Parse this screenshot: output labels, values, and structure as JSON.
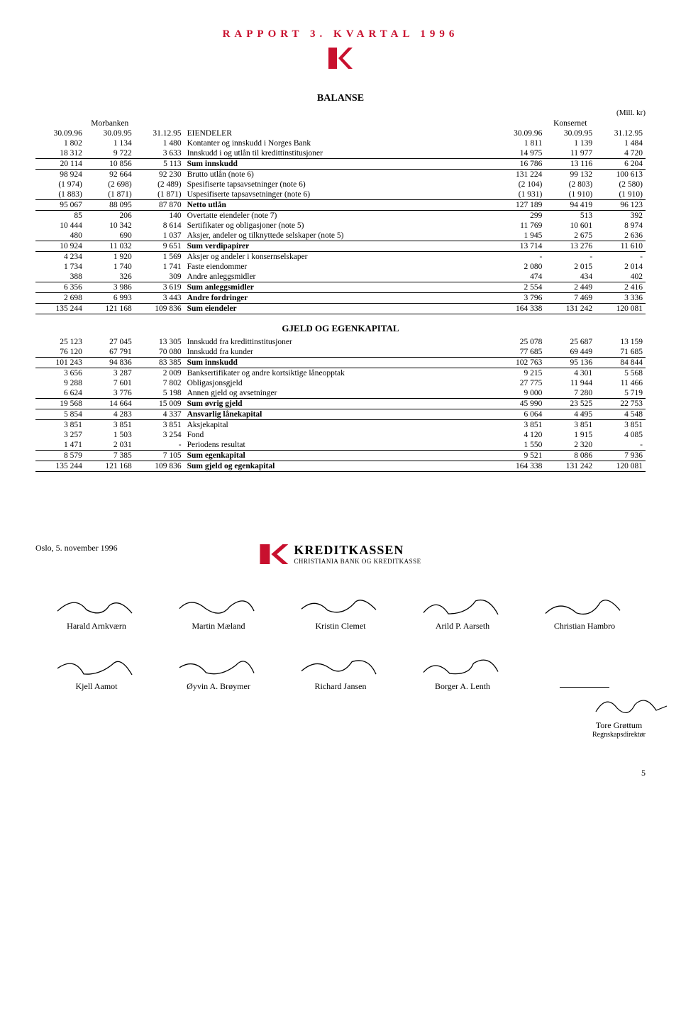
{
  "page": {
    "header": "RAPPORT 3. KVARTAL 1996",
    "unit": "(Mill. kr)",
    "section_balanse": "BALANSE",
    "section_gjeld": "GJELD OG EGENKAPITAL",
    "left_group": "Morbanken",
    "right_group": "Konsernet",
    "dates": [
      "30.09.96",
      "30.09.95",
      "31.12.95",
      "30.09.96",
      "30.09.95",
      "31.12.95"
    ],
    "eiendeler_label": "EIENDELER",
    "page_num": "5"
  },
  "eiendeler_rows": [
    {
      "l": "Kontanter og innskudd i Norges Bank",
      "a": "1 802",
      "b": "1 134",
      "c": "1 480",
      "d": "1 811",
      "e": "1 139",
      "f": "1 484"
    },
    {
      "l": "Innskudd i og utlån til kredittinstitusjoner",
      "a": "18 312",
      "b": "9 722",
      "c": "3 633",
      "d": "14 975",
      "e": "11 977",
      "f": "4 720"
    },
    {
      "l": "Sum innskudd",
      "a": "20 114",
      "b": "10 856",
      "c": "5 113",
      "d": "16 786",
      "e": "13 116",
      "f": "6 204",
      "sum": true
    },
    {
      "l": "Brutto utlån (note 6)",
      "a": "98 924",
      "b": "92 664",
      "c": "92 230",
      "d": "131 224",
      "e": "99 132",
      "f": "100 613"
    },
    {
      "l": "Spesifiserte tapsavsetninger (note 6)",
      "a": "(1 974)",
      "b": "(2 698)",
      "c": "(2 489)",
      "d": "(2 104)",
      "e": "(2 803)",
      "f": "(2 580)"
    },
    {
      "l": "Uspesifiserte tapsavsetninger (note 6)",
      "a": "(1 883)",
      "b": "(1 871)",
      "c": "(1 871)",
      "d": "(1 931)",
      "e": "(1 910)",
      "f": "(1 910)"
    },
    {
      "l": "Netto utlån",
      "a": "95 067",
      "b": "88 095",
      "c": "87 870",
      "d": "127 189",
      "e": "94 419",
      "f": "96 123",
      "sum": true
    },
    {
      "l": "Overtatte eiendeler (note 7)",
      "a": "85",
      "b": "206",
      "c": "140",
      "d": "299",
      "e": "513",
      "f": "392"
    },
    {
      "l": "Sertifikater og obligasjoner (note 5)",
      "a": "10 444",
      "b": "10 342",
      "c": "8 614",
      "d": "11 769",
      "e": "10 601",
      "f": "8 974"
    },
    {
      "l": "Aksjer, andeler og tilknyttede selskaper (note 5)",
      "a": "480",
      "b": "690",
      "c": "1 037",
      "d": "1 945",
      "e": "2 675",
      "f": "2 636"
    },
    {
      "l": "Sum verdipapirer",
      "a": "10 924",
      "b": "11 032",
      "c": "9 651",
      "d": "13 714",
      "e": "13 276",
      "f": "11 610",
      "sum": true
    },
    {
      "l": "Aksjer og andeler i konsernselskaper",
      "a": "4 234",
      "b": "1 920",
      "c": "1 569",
      "d": "-",
      "e": "-",
      "f": "-"
    },
    {
      "l": "Faste eiendommer",
      "a": "1 734",
      "b": "1 740",
      "c": "1 741",
      "d": "2 080",
      "e": "2 015",
      "f": "2 014"
    },
    {
      "l": "Andre anleggsmidler",
      "a": "388",
      "b": "326",
      "c": "309",
      "d": "474",
      "e": "434",
      "f": "402"
    },
    {
      "l": "Sum anleggsmidler",
      "a": "6 356",
      "b": "3 986",
      "c": "3 619",
      "d": "2 554",
      "e": "2 449",
      "f": "2 416",
      "sum": true
    },
    {
      "l": "Andre fordringer",
      "a": "2 698",
      "b": "6 993",
      "c": "3 443",
      "d": "3 796",
      "e": "7 469",
      "f": "3 336",
      "sum": true
    },
    {
      "l": "Sum eiendeler",
      "a": "135 244",
      "b": "121 168",
      "c": "109 836",
      "d": "164 338",
      "e": "131 242",
      "f": "120 081",
      "sum": true
    }
  ],
  "gjeld_rows": [
    {
      "l": "Innskudd fra kredittinstitusjoner",
      "a": "25 123",
      "b": "27 045",
      "c": "13 305",
      "d": "25 078",
      "e": "25 687",
      "f": "13 159"
    },
    {
      "l": "Innskudd fra kunder",
      "a": "76 120",
      "b": "67 791",
      "c": "70 080",
      "d": "77 685",
      "e": "69 449",
      "f": "71 685"
    },
    {
      "l": "Sum innskudd",
      "a": "101 243",
      "b": "94 836",
      "c": "83 385",
      "d": "102 763",
      "e": "95 136",
      "f": "84 844",
      "sum": true
    },
    {
      "l": "Banksertifikater og andre kortsiktige låneopptak",
      "a": "3 656",
      "b": "3 287",
      "c": "2 009",
      "d": "9 215",
      "e": "4 301",
      "f": "5 568"
    },
    {
      "l": "Obligasjonsgjeld",
      "a": "9 288",
      "b": "7 601",
      "c": "7 802",
      "d": "27 775",
      "e": "11 944",
      "f": "11 466"
    },
    {
      "l": "Annen gjeld og avsetninger",
      "a": "6 624",
      "b": "3 776",
      "c": "5 198",
      "d": "9 000",
      "e": "7 280",
      "f": "5 719"
    },
    {
      "l": "Sum øvrig gjeld",
      "a": "19 568",
      "b": "14 664",
      "c": "15 009",
      "d": "45 990",
      "e": "23 525",
      "f": "22 753",
      "sum": true
    },
    {
      "l": "Ansvarlig lånekapital",
      "a": "5 854",
      "b": "4 283",
      "c": "4 337",
      "d": "6 064",
      "e": "4 495",
      "f": "4 548",
      "sum": true
    },
    {
      "l": "Aksjekapital",
      "a": "3 851",
      "b": "3 851",
      "c": "3 851",
      "d": "3 851",
      "e": "3 851",
      "f": "3 851"
    },
    {
      "l": "Fond",
      "a": "3 257",
      "b": "1 503",
      "c": "3 254",
      "d": "4 120",
      "e": "1 915",
      "f": "4 085"
    },
    {
      "l": "Periodens resultat",
      "a": "1 471",
      "b": "2 031",
      "c": "-",
      "d": "1 550",
      "e": "2 320",
      "f": "-"
    },
    {
      "l": "Sum egenkapital",
      "a": "8 579",
      "b": "7 385",
      "c": "7 105",
      "d": "9 521",
      "e": "8 086",
      "f": "7 936",
      "sum": true
    },
    {
      "l": "Sum gjeld og egenkapital",
      "a": "135 244",
      "b": "121 168",
      "c": "109 836",
      "d": "164 338",
      "e": "131 242",
      "f": "120 081",
      "sum": true
    }
  ],
  "sign": {
    "date": "Oslo, 5. november 1996",
    "brand": "KREDITKASSEN",
    "brand_sub": "CHRISTIANIA BANK OG KREDITKASSE",
    "row1": [
      "Harald Arnkværn",
      "Martin Mæland",
      "Kristin Clemet",
      "Arild P. Aarseth",
      "Christian Hambro"
    ],
    "row2": [
      "Kjell Aamot",
      "Øyvin A. Brøymer",
      "Richard Jansen",
      "Borger A. Lenth",
      ""
    ],
    "last_name": "Tore Grøttum",
    "last_role": "Regnskapsdirektør"
  }
}
